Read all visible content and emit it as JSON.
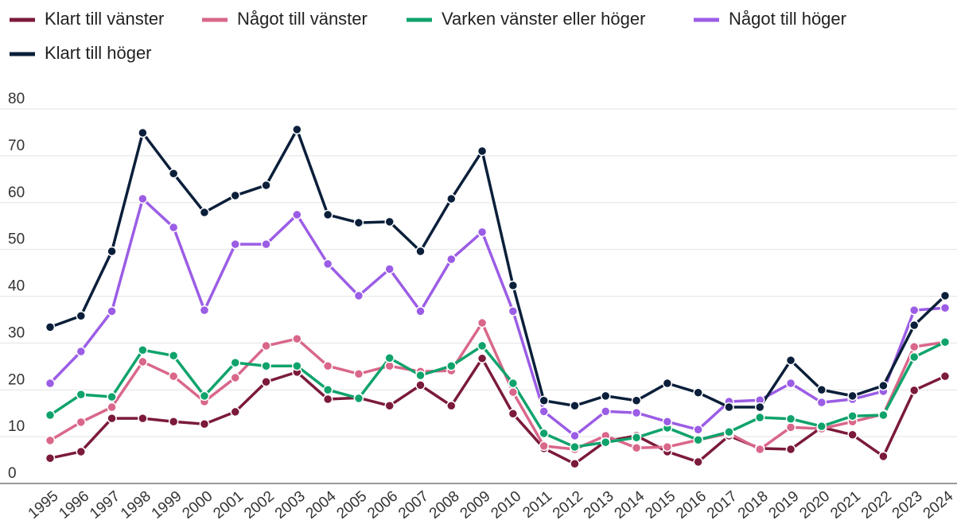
{
  "chart_data": {
    "type": "line",
    "categories": [
      "1995",
      "1996",
      "1997",
      "1998",
      "1999",
      "2000",
      "2001",
      "2002",
      "2003",
      "2004",
      "2005",
      "2006",
      "2007",
      "2008",
      "2009",
      "2010",
      "2011",
      "2012",
      "2013",
      "2014",
      "2015",
      "2016",
      "2017",
      "2018",
      "2019",
      "2020",
      "2021",
      "2022",
      "2023",
      "2024"
    ],
    "series": [
      {
        "name": "Klart till vänster",
        "color": "#7b1a3a",
        "values": [
          5.4,
          6.8,
          13.9,
          13.9,
          13.2,
          12.7,
          15.3,
          21.7,
          23.8,
          18,
          18.3,
          16.6,
          21,
          16.6,
          26.7,
          14.9,
          7.5,
          4.2,
          9,
          10.2,
          6.8,
          4.6,
          10.2,
          7.5,
          7.3,
          12,
          10.4,
          5.8,
          19.9,
          22.9
        ]
      },
      {
        "name": "Något till vänster",
        "color": "#d9678a",
        "values": [
          9.2,
          13.1,
          16.3,
          26,
          22.9,
          17.5,
          22.6,
          29.4,
          30.9,
          25.1,
          23.4,
          25.1,
          23.9,
          24.1,
          34.3,
          19.5,
          8,
          7.3,
          10.2,
          7.6,
          7.8,
          9.3,
          10.7,
          7.3,
          12,
          11.7,
          13.2,
          14.8,
          29.2,
          30.2
        ]
      },
      {
        "name": "Varken vänster eller höger",
        "color": "#0fa36b",
        "values": [
          14.6,
          19,
          18.5,
          28.5,
          27.3,
          18.7,
          25.8,
          25.1,
          25.1,
          20,
          18.2,
          26.8,
          23.1,
          25.1,
          29.4,
          21.4,
          10.7,
          7.8,
          8.8,
          9.8,
          11.9,
          9.3,
          11,
          14.1,
          13.8,
          12.2,
          14.4,
          14.6,
          27,
          30.2
        ]
      },
      {
        "name": "Något till höger",
        "color": "#9b5de5",
        "values": [
          21.4,
          28.2,
          36.8,
          60.8,
          54.7,
          37,
          51.1,
          51.1,
          57.4,
          46.9,
          40.1,
          45.8,
          36.8,
          47.9,
          53.7,
          36.8,
          15.4,
          10.2,
          15.4,
          15.1,
          13.2,
          11.5,
          17.5,
          17.8,
          21.4,
          17.3,
          18,
          19.7,
          37,
          37.5
        ]
      },
      {
        "name": "Klart till höger",
        "color": "#0b1f3a",
        "values": [
          33.4,
          35.8,
          49.6,
          74.9,
          66.2,
          57.9,
          61.5,
          63.7,
          75.6,
          57.4,
          55.7,
          55.9,
          49.6,
          60.8,
          71,
          42.3,
          17.7,
          16.6,
          18.7,
          17.7,
          21.4,
          19.4,
          16.3,
          16.3,
          26.3,
          20,
          18.7,
          20.9,
          33.8,
          40.1
        ]
      }
    ],
    "ylim": [
      0,
      80
    ],
    "yticks": [
      0,
      10,
      20,
      30,
      40,
      50,
      60,
      70,
      80
    ],
    "grid": true
  }
}
